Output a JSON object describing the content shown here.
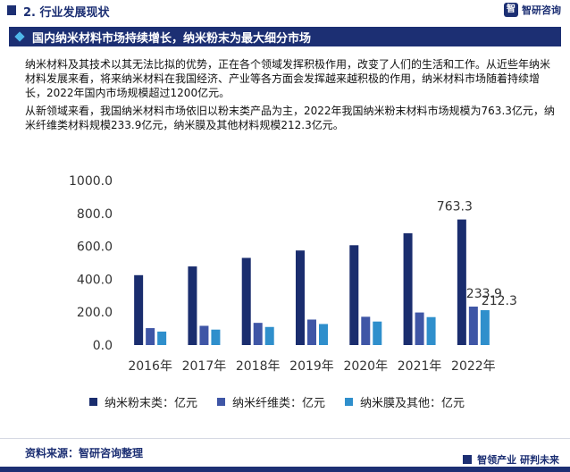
{
  "header": {
    "section_title": "2. 行业发展现状",
    "logo_text": "智研咨询"
  },
  "banner": {
    "title": "国内纳米材料市场持续增长，纳米粉末为最大细分市场"
  },
  "paragraphs": [
    "纳米材料及其技术以其无法比拟的优势，正在各个领域发挥积极作用，改变了人们的生活和工作。从近些年纳米材料发展来看，将来纳米材料在我国经济、产业等各方面会发挥越来越积极的作用，纳米材料市场随着持续增长，2022年国内市场规模超过1200亿元。",
    "从新领域来看，我国纳米材料市场依旧以粉末类产品为主，2022年我国纳米粉末材料市场规模为763.3亿元，纳米纤维类材料规模233.9亿元，纳米膜及其他材料规模212.3亿元。"
  ],
  "footer": {
    "source": "资料来源：智研咨询整理",
    "brand": "智领产业  研判未来"
  },
  "colors": {
    "accent": "#1c2f73",
    "series1": "#1a2d6e",
    "series2": "#3f56a6",
    "series3": "#2f8fcc"
  },
  "chart_data": {
    "type": "bar",
    "categories": [
      "2016年",
      "2017年",
      "2018年",
      "2019年",
      "2020年",
      "2021年",
      "2022年"
    ],
    "series": [
      {
        "name": "纳米粉末类：亿元",
        "values": [
          425,
          478,
          530,
          575,
          607,
          680,
          763.3
        ]
      },
      {
        "name": "纳米纤维类：亿元",
        "values": [
          103,
          117,
          135,
          155,
          172,
          198,
          233.9
        ]
      },
      {
        "name": "纳米膜及其他：亿元",
        "values": [
          82,
          94,
          110,
          128,
          143,
          170,
          212.3
        ]
      }
    ],
    "data_labels": [
      {
        "series": 0,
        "index": 6,
        "text": "763.3"
      },
      {
        "series": 1,
        "index": 6,
        "text": "233.9"
      },
      {
        "series": 2,
        "index": 6,
        "text": "212.3"
      }
    ],
    "yticks": [
      "0.0",
      "200.0",
      "400.0",
      "600.0",
      "800.0",
      "1000.0"
    ],
    "ylim": [
      0,
      1000
    ],
    "legend_position": "bottom",
    "grid": false
  }
}
